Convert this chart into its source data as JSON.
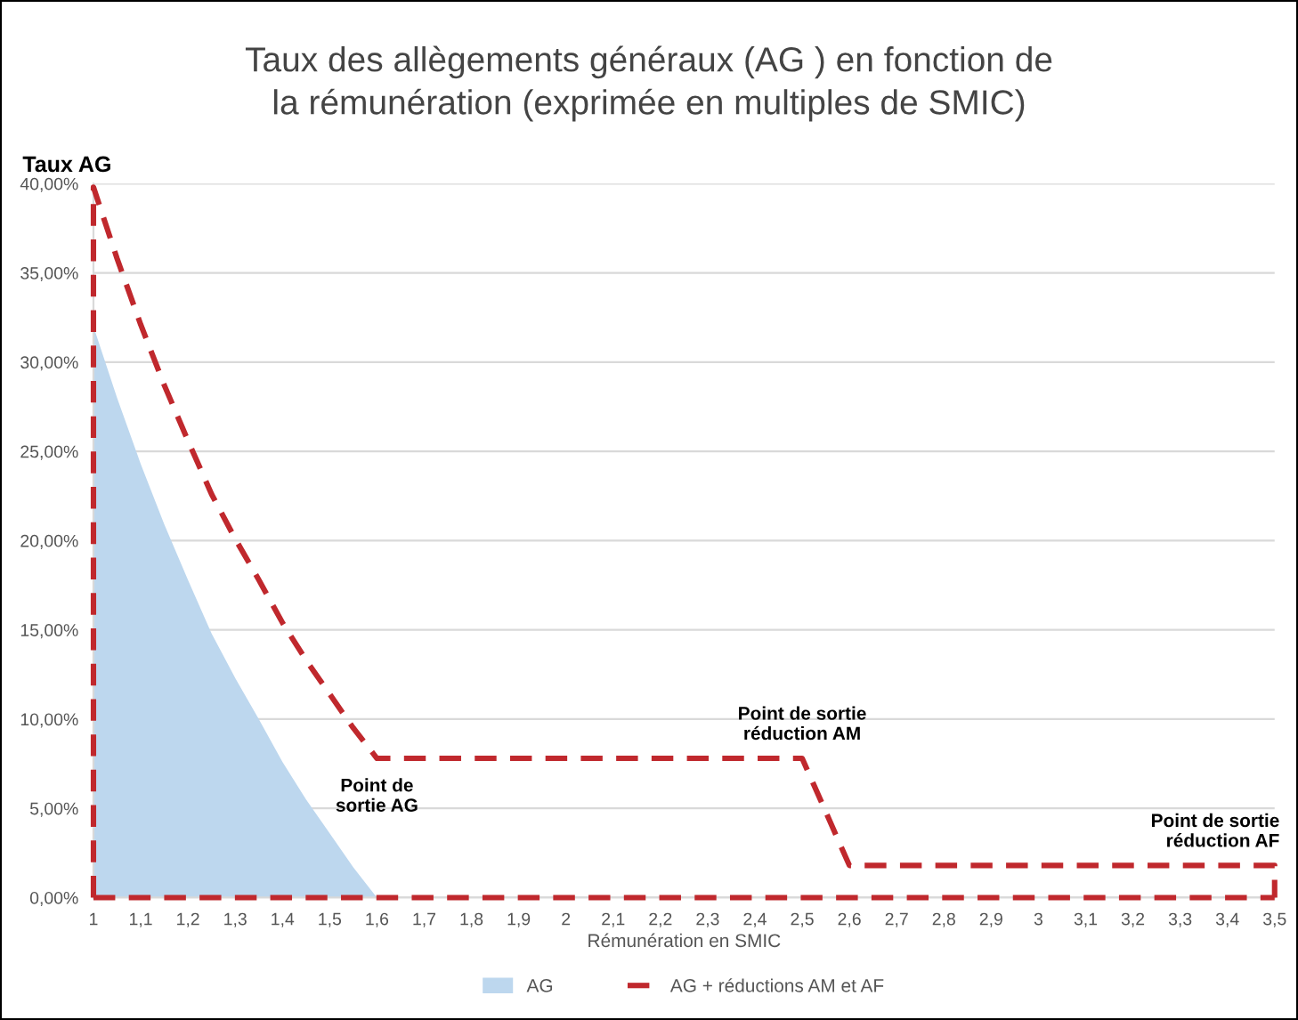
{
  "chart_data": {
    "type": "area",
    "title": "Taux des allègements généraux (AG ) en fonction de\nla rémunération (exprimée en multiples de SMIC)",
    "xlabel": "Rémunération en SMIC",
    "ylabel": "Taux AG",
    "series": [
      {
        "name": "AG",
        "color": "#bdd7ee",
        "x": [
          1,
          1.05,
          1.1,
          1.15,
          1.2,
          1.25,
          1.3,
          1.35,
          1.4,
          1.45,
          1.5,
          1.55,
          1.6
        ],
        "values": [
          32,
          28,
          24.3,
          20.9,
          17.8,
          14.8,
          12.3,
          10,
          7.6,
          5.5,
          3.6,
          1.7,
          0
        ]
      },
      {
        "name": "AG + réductions AM et AF",
        "type": "line",
        "color": "#c0282d",
        "line_style": "dashed",
        "marker": "none",
        "x": [
          1,
          1,
          1.05,
          1.1,
          1.15,
          1.2,
          1.25,
          1.3,
          1.35,
          1.4,
          1.45,
          1.5,
          1.55,
          1.6,
          2.5,
          2.6,
          3.5,
          3.5
        ],
        "values": [
          0,
          39.8,
          35.8,
          32.1,
          28.7,
          25.6,
          22.6,
          20.1,
          17.8,
          15.4,
          13.3,
          11.4,
          9.5,
          7.8,
          7.8,
          1.8,
          1.8,
          0
        ]
      }
    ],
    "xlim": [
      1,
      3.5
    ],
    "xticks": [
      1,
      {
        "value": 1.1,
        "label": "1,1"
      },
      {
        "value": 1.2,
        "label": "1,2"
      },
      {
        "value": 1.3,
        "label": "1,3"
      },
      {
        "value": 1.4,
        "label": "1,4"
      },
      {
        "value": 1.5,
        "label": "1,5"
      },
      {
        "value": 1.6,
        "label": "1,6"
      },
      {
        "value": 1.7,
        "label": "1,7"
      },
      {
        "value": 1.8,
        "label": "1,8"
      },
      {
        "value": 1.9,
        "label": "1,9"
      },
      2,
      {
        "value": 2.1,
        "label": "2,1"
      },
      {
        "value": 2.2,
        "label": "2,2"
      },
      {
        "value": 2.3,
        "label": "2,3"
      },
      {
        "value": 2.4,
        "label": "2,4"
      },
      {
        "value": 2.5,
        "label": "2,5"
      },
      {
        "value": 2.6,
        "label": "2,6"
      },
      {
        "value": 2.7,
        "label": "2,7"
      },
      {
        "value": 2.8,
        "label": "2,8"
      },
      {
        "value": 2.9,
        "label": "2,9"
      },
      3,
      {
        "value": 3.1,
        "label": "3,1"
      },
      {
        "value": 3.2,
        "label": "3,2"
      },
      {
        "value": 3.3,
        "label": "3,3"
      },
      {
        "value": 3.4,
        "label": "3,4"
      },
      {
        "value": 3.5,
        "label": "3,5"
      }
    ],
    "ylim": [
      0,
      40
    ],
    "yticks": [
      {
        "value": 0,
        "label": "0,00%"
      },
      {
        "value": 5,
        "label": "5,00%"
      },
      {
        "value": 10,
        "label": "10,00%"
      },
      {
        "value": 15,
        "label": "15,00%"
      },
      {
        "value": 20,
        "label": "20,00%"
      },
      {
        "value": 25,
        "label": "25,00%"
      },
      {
        "value": 30,
        "label": "30,00%"
      },
      {
        "value": 35,
        "label": "35,00%"
      },
      {
        "value": 40,
        "label": "40,00%"
      }
    ],
    "ref_lines": [
      {
        "axis": "y",
        "value": 0,
        "color": "#c0282d",
        "line_style": "dashed"
      }
    ],
    "grid": "y",
    "legend": "bottom",
    "annotations": [
      {
        "text": "Point de\nsortie AG",
        "x": 1.6,
        "y": 7.8
      },
      {
        "text": "Point de sortie\nréduction AM",
        "x": 2.5,
        "y": 7.8
      },
      {
        "text": "Point de sortie\nréduction AF",
        "x": 3.5,
        "y": 1.8
      }
    ]
  }
}
